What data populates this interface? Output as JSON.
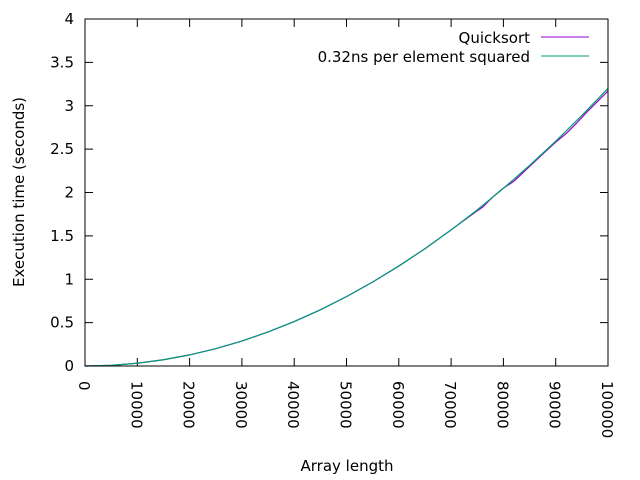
{
  "chart_data": {
    "type": "line",
    "title": "",
    "xlabel": "Array length",
    "ylabel": "Execution time (seconds)",
    "xlim": [
      0,
      100000
    ],
    "ylim": [
      0,
      4
    ],
    "x_ticks": [
      "0",
      "10000",
      "20000",
      "30000",
      "40000",
      "50000",
      "60000",
      "70000",
      "80000",
      "90000",
      "100000"
    ],
    "y_ticks": [
      "0",
      "0.5",
      "1",
      "1.5",
      "2",
      "2.5",
      "3",
      "3.5",
      "4"
    ],
    "grid": false,
    "legend_position": "top-right",
    "series": [
      {
        "name": "Quicksort",
        "color": "#9400d3",
        "x": [
          0,
          5000,
          10000,
          15000,
          20000,
          25000,
          30000,
          35000,
          40000,
          45000,
          50000,
          55000,
          60000,
          65000,
          70000,
          75000,
          76000,
          78000,
          79000,
          80000,
          82000,
          85000,
          88000,
          90000,
          92000,
          94000,
          96000,
          98000,
          100000
        ],
        "y": [
          0,
          0.008,
          0.032,
          0.072,
          0.128,
          0.2,
          0.288,
          0.392,
          0.512,
          0.648,
          0.8,
          0.968,
          1.152,
          1.352,
          1.57,
          1.79,
          1.83,
          1.95,
          2.0,
          2.05,
          2.13,
          2.3,
          2.47,
          2.58,
          2.68,
          2.8,
          2.93,
          3.05,
          3.17
        ]
      },
      {
        "name": "0.32ns per element squared",
        "color": "#009e73",
        "x": [
          0,
          5000,
          10000,
          15000,
          20000,
          25000,
          30000,
          35000,
          40000,
          45000,
          50000,
          55000,
          60000,
          65000,
          70000,
          75000,
          80000,
          85000,
          90000,
          95000,
          100000
        ],
        "y": [
          0,
          0.008,
          0.032,
          0.072,
          0.128,
          0.2,
          0.288,
          0.392,
          0.512,
          0.648,
          0.8,
          0.968,
          1.152,
          1.352,
          1.568,
          1.8,
          2.048,
          2.312,
          2.592,
          2.888,
          3.2
        ]
      }
    ]
  }
}
